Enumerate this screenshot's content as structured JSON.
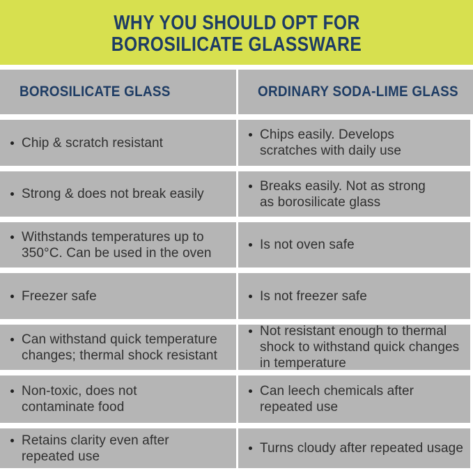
{
  "colors": {
    "banner_bg": "#d7e04f",
    "heading_navy": "#1e3c64",
    "row_gray": "#b5b5b5",
    "body_text": "#2f2f2f",
    "gap_white": "#ffffff"
  },
  "banner": {
    "title_line1": "WHY YOU SHOULD OPT FOR",
    "title_line2": "BOROSILICATE GLASSWARE"
  },
  "table": {
    "columns": [
      {
        "label": "BOROSILICATE GLASS"
      },
      {
        "label": "ORDINARY SODA-LIME GLASS"
      }
    ],
    "rows": [
      {
        "left": "Chip & scratch resistant",
        "right": "Chips easily. Develops\nscratches with daily use"
      },
      {
        "left": "Strong & does not break easily",
        "right": "Breaks easily. Not as strong\nas borosilicate glass"
      },
      {
        "left": "Withstands temperatures up to\n350°C. Can be used in the oven",
        "right": "Is not oven safe"
      },
      {
        "left": "Freezer safe",
        "right": "Is not freezer safe"
      },
      {
        "left": "Can withstand quick temperature\nchanges; thermal shock resistant",
        "right": "Not resistant enough to thermal\nshock to withstand quick changes\nin temperature"
      },
      {
        "left": "Non-toxic, does not\ncontaminate food",
        "right": "Can leech chemicals after\nrepeated use"
      },
      {
        "left": "Retains clarity even after\nrepeated use",
        "right": "Turns cloudy after repeated usage"
      }
    ]
  }
}
